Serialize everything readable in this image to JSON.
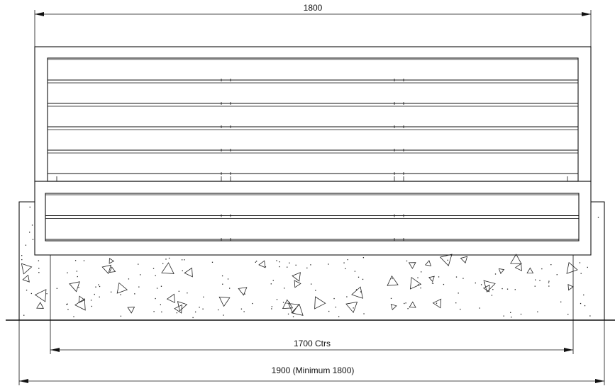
{
  "drawing": {
    "type": "elevation-section",
    "dimensions": {
      "top_width": "1800",
      "centres": "1700 Ctrs",
      "base_width": "1900 (Minimum 1800)"
    },
    "upper_board_count": 5,
    "lower_board_count": 2,
    "post_divisions": 3
  }
}
